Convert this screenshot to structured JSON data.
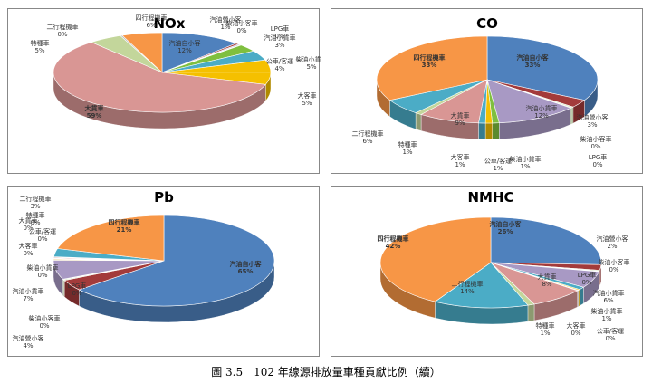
{
  "caption": "圖 3.5　102 年線源排放量車種貢獻比例（續）",
  "colors": {
    "blue": "#4f81bd",
    "darkred": "#a33b3b",
    "lilac": "#a899c4",
    "green": "#7fbf3f",
    "pink": "#d99694",
    "orange": "#f79646",
    "yellow": "#f5c000",
    "teal": "#4bacc6",
    "lightgreen": "#c3d69b",
    "grey": "#b9b9b9"
  },
  "chart_data": [
    {
      "type": "pie",
      "title": "NOx",
      "slices": [
        {
          "label": "汽油自小客",
          "value": 12,
          "pct": "12%",
          "color": "#4f81bd"
        },
        {
          "label": "汽油營小客",
          "value": 0.5,
          "pct": "1%",
          "color": "#a33b3b"
        },
        {
          "label": "柴油小客車",
          "value": 0.3,
          "pct": "0%",
          "color": "#a899c4"
        },
        {
          "label": "LPG車",
          "value": 0.2,
          "pct": "0%",
          "color": "#c3d69b"
        },
        {
          "label": "汽油小貨車",
          "value": 3,
          "pct": "3%",
          "color": "#7fbf3f"
        },
        {
          "label": "公車/客運",
          "value": 4,
          "pct": "4%",
          "color": "#4bacc6"
        },
        {
          "label": "柴油小貨車",
          "value": 5,
          "pct": "5%",
          "color": "#f5c000"
        },
        {
          "label": "大客車",
          "value": 5,
          "pct": "5%",
          "color": "#f5c000"
        },
        {
          "label": "大貨車",
          "value": 59,
          "pct": "59%",
          "color": "#d99694"
        },
        {
          "label": "特種車",
          "value": 5,
          "pct": "5%",
          "color": "#c3d69b"
        },
        {
          "label": "二行程機車",
          "value": 0.3,
          "pct": "0%",
          "color": "#b9b9b9"
        },
        {
          "label": "四行程機車",
          "value": 6,
          "pct": "6%",
          "color": "#f79646"
        }
      ]
    },
    {
      "type": "pie",
      "title": "CO",
      "slices": [
        {
          "label": "汽油自小客",
          "value": 33,
          "pct": "33%",
          "color": "#4f81bd"
        },
        {
          "label": "汽油營小客",
          "value": 3,
          "pct": "3%",
          "color": "#a33b3b"
        },
        {
          "label": "柴油小客車",
          "value": 0.3,
          "pct": "0%",
          "color": "#c3d69b"
        },
        {
          "label": "LPG車",
          "value": 0.2,
          "pct": "0%",
          "color": "#7fbf3f"
        },
        {
          "label": "汽油小貨車",
          "value": 12,
          "pct": "12%",
          "color": "#a899c4"
        },
        {
          "label": "柴油小貨車",
          "value": 1,
          "pct": "1%",
          "color": "#7fbf3f"
        },
        {
          "label": "公車/客運",
          "value": 1,
          "pct": "1%",
          "color": "#f5c000"
        },
        {
          "label": "大客車",
          "value": 1,
          "pct": "1%",
          "color": "#4bacc6"
        },
        {
          "label": "大貨車",
          "value": 9,
          "pct": "9%",
          "color": "#d99694"
        },
        {
          "label": "特種車",
          "value": 1,
          "pct": "1%",
          "color": "#c3d69b"
        },
        {
          "label": "二行程機車",
          "value": 6,
          "pct": "6%",
          "color": "#4bacc6"
        },
        {
          "label": "四行程機車",
          "value": 33,
          "pct": "33%",
          "color": "#f79646"
        }
      ]
    },
    {
      "type": "pie",
      "title": "Pb",
      "slices": [
        {
          "label": "汽油自小客",
          "value": 65,
          "pct": "65%",
          "color": "#4f81bd"
        },
        {
          "label": "汽油營小客",
          "value": 4,
          "pct": "4%",
          "color": "#a33b3b"
        },
        {
          "label": "柴油小客車",
          "value": 0.3,
          "pct": "0%",
          "color": "#c3d69b"
        },
        {
          "label": "LPG車",
          "value": 0.2,
          "pct": "0%",
          "color": "#7fbf3f"
        },
        {
          "label": "汽油小貨車",
          "value": 7,
          "pct": "7%",
          "color": "#a899c4"
        },
        {
          "label": "柴油小貨車",
          "value": 0.3,
          "pct": "0%",
          "color": "#f5c000"
        },
        {
          "label": "大客車",
          "value": 0.2,
          "pct": "0%",
          "color": "#d99694"
        },
        {
          "label": "公車/客運",
          "value": 0.2,
          "pct": "0%",
          "color": "#b9b9b9"
        },
        {
          "label": "大貨車",
          "value": 0.3,
          "pct": "0%",
          "color": "#d99694"
        },
        {
          "label": "特種車",
          "value": 0.2,
          "pct": "0%",
          "color": "#c3d69b"
        },
        {
          "label": "二行程機車",
          "value": 3,
          "pct": "3%",
          "color": "#4bacc6"
        },
        {
          "label": "四行程機車",
          "value": 21,
          "pct": "21%",
          "color": "#f79646"
        }
      ]
    },
    {
      "type": "pie",
      "title": "NMHC",
      "slices": [
        {
          "label": "汽油自小客",
          "value": 26,
          "pct": "26%",
          "color": "#4f81bd"
        },
        {
          "label": "汽油營小客",
          "value": 2,
          "pct": "2%",
          "color": "#a33b3b"
        },
        {
          "label": "柴油小客車",
          "value": 0.3,
          "pct": "0%",
          "color": "#c3d69b"
        },
        {
          "label": "LPG車",
          "value": 0.2,
          "pct": "0%",
          "color": "#7fbf3f"
        },
        {
          "label": "汽油小貨車",
          "value": 6,
          "pct": "6%",
          "color": "#a899c4"
        },
        {
          "label": "柴油小貨車",
          "value": 1,
          "pct": "1%",
          "color": "#4bacc6"
        },
        {
          "label": "公車/客運",
          "value": 0.3,
          "pct": "0%",
          "color": "#f5c000"
        },
        {
          "label": "大客車",
          "value": 0.2,
          "pct": "0%",
          "color": "#b9b9b9"
        },
        {
          "label": "大貨車",
          "value": 8,
          "pct": "8%",
          "color": "#d99694"
        },
        {
          "label": "特種車",
          "value": 1,
          "pct": "1%",
          "color": "#c3d69b"
        },
        {
          "label": "二行程機車",
          "value": 14,
          "pct": "14%",
          "color": "#4bacc6"
        },
        {
          "label": "四行程機車",
          "value": 42,
          "pct": "42%",
          "color": "#f79646"
        }
      ]
    }
  ]
}
